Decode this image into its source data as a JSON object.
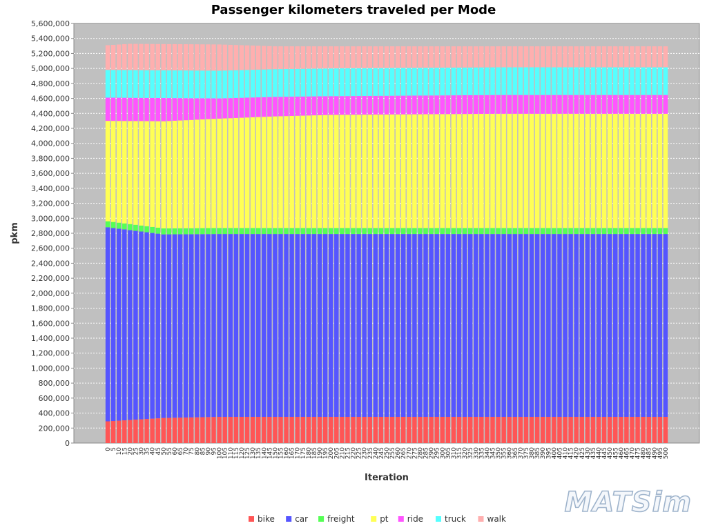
{
  "chart_data": {
    "type": "bar",
    "stacked": true,
    "title": "Passenger kilometers traveled per Mode",
    "xlabel": "Iteration",
    "ylabel": "pkm",
    "ylim": [
      0,
      5600000
    ],
    "y_ticks": [
      "0",
      "200,000",
      "400,000",
      "600,000",
      "800,000",
      "1,000,000",
      "1,200,000",
      "1,400,000",
      "1,600,000",
      "1,800,000",
      "2,000,000",
      "2,200,000",
      "2,400,000",
      "2,600,000",
      "2,800,000",
      "3,000,000",
      "3,200,000",
      "3,400,000",
      "3,600,000",
      "3,800,000",
      "4,000,000",
      "4,200,000",
      "4,400,000",
      "4,600,000",
      "4,800,000",
      "5,000,000",
      "5,200,000",
      "5,400,000",
      "5,600,000"
    ],
    "y_tick_values": [
      0,
      200000,
      400000,
      600000,
      800000,
      1000000,
      1200000,
      1400000,
      1600000,
      1800000,
      2000000,
      2200000,
      2400000,
      2600000,
      2800000,
      3000000,
      3200000,
      3400000,
      3600000,
      3800000,
      4000000,
      4200000,
      4400000,
      4600000,
      4800000,
      5000000,
      5200000,
      5400000,
      5600000
    ],
    "grid": true,
    "legend_position": "bottom",
    "background": "#c0c0c0",
    "x": [
      0,
      5,
      10,
      15,
      20,
      25,
      30,
      35,
      40,
      45,
      50,
      55,
      60,
      65,
      70,
      75,
      80,
      85,
      90,
      95,
      100,
      105,
      110,
      115,
      120,
      125,
      130,
      135,
      140,
      145,
      150,
      155,
      160,
      165,
      170,
      175,
      180,
      185,
      190,
      195,
      200,
      205,
      210,
      215,
      220,
      225,
      230,
      235,
      240,
      245,
      250,
      255,
      260,
      265,
      270,
      275,
      280,
      285,
      290,
      295,
      300,
      305,
      310,
      315,
      320,
      325,
      330,
      335,
      340,
      345,
      350,
      355,
      360,
      365,
      370,
      375,
      380,
      385,
      390,
      395,
      400,
      405,
      410,
      415,
      420,
      425,
      430,
      435,
      440,
      445,
      450,
      455,
      460,
      465,
      470,
      475,
      480,
      485,
      490,
      495,
      500
    ],
    "series": [
      {
        "name": "bike",
        "color": "#ff5555",
        "values": [
          290000,
          294500,
          299000,
          303500,
          308000,
          312500,
          317000,
          321500,
          326000,
          330500,
          335000,
          336500,
          338000,
          339500,
          341000,
          342500,
          344000,
          345500,
          347000,
          348500,
          350000,
          350000,
          350000,
          350000,
          350000,
          350000,
          350000,
          350000,
          350000,
          350000,
          350000,
          350000,
          350000,
          350000,
          350000,
          350000,
          350000,
          350000,
          350000,
          350000,
          350000,
          350000,
          350000,
          350000,
          350000,
          350000,
          350000,
          350000,
          350000,
          350000,
          350000,
          350000,
          350000,
          350000,
          350000,
          350000,
          350000,
          350000,
          350000,
          350000,
          350000,
          350000,
          350000,
          350000,
          350000,
          350000,
          350000,
          350000,
          350000,
          350000,
          350000,
          350000,
          350000,
          350000,
          350000,
          350000,
          350000,
          350000,
          350000,
          350000,
          350000,
          350000,
          350000,
          350000,
          350000,
          350000,
          350000,
          350000,
          350000,
          350000,
          350000,
          350000,
          350000,
          350000,
          350000,
          350000,
          350000,
          350000,
          350000,
          350000,
          350000
        ]
      },
      {
        "name": "car",
        "color": "#5555ff",
        "values": [
          2590000,
          2576000,
          2562000,
          2548000,
          2534000,
          2520000,
          2506000,
          2492000,
          2478000,
          2464000,
          2450000,
          2449000,
          2448000,
          2447000,
          2446000,
          2445000,
          2444000,
          2443000,
          2442000,
          2441000,
          2440000,
          2440000,
          2440000,
          2440000,
          2440000,
          2440000,
          2440000,
          2440000,
          2440000,
          2440000,
          2440000,
          2440000,
          2440000,
          2440000,
          2440000,
          2440000,
          2440000,
          2440000,
          2440000,
          2440000,
          2440000,
          2440000,
          2440000,
          2440000,
          2440000,
          2440000,
          2440000,
          2440000,
          2440000,
          2440000,
          2440000,
          2440000,
          2440000,
          2440000,
          2440000,
          2440000,
          2440000,
          2440000,
          2440000,
          2440000,
          2440000,
          2440000,
          2440000,
          2440000,
          2440000,
          2440000,
          2440000,
          2440000,
          2440000,
          2440000,
          2440000,
          2440000,
          2440000,
          2440000,
          2440000,
          2440000,
          2440000,
          2440000,
          2440000,
          2440000,
          2440000,
          2440000,
          2440000,
          2440000,
          2440000,
          2440000,
          2440000,
          2440000,
          2440000,
          2440000,
          2440000,
          2440000,
          2440000,
          2440000,
          2440000,
          2440000,
          2440000,
          2440000,
          2440000,
          2440000,
          2440000
        ]
      },
      {
        "name": "freight",
        "color": "#55ff55",
        "values": [
          80000,
          80000,
          80000,
          80000,
          80000,
          80000,
          80000,
          80000,
          80000,
          80000,
          80000,
          80000,
          80000,
          80000,
          80000,
          80000,
          80000,
          80000,
          80000,
          80000,
          80000,
          80000,
          80000,
          80000,
          80000,
          80000,
          80000,
          80000,
          80000,
          80000,
          80000,
          80000,
          80000,
          80000,
          80000,
          80000,
          80000,
          80000,
          80000,
          80000,
          80000,
          80000,
          80000,
          80000,
          80000,
          80000,
          80000,
          80000,
          80000,
          80000,
          80000,
          80000,
          80000,
          80000,
          80000,
          80000,
          80000,
          80000,
          80000,
          80000,
          80000,
          80000,
          80000,
          80000,
          80000,
          80000,
          80000,
          80000,
          80000,
          80000,
          80000,
          80000,
          80000,
          80000,
          80000,
          80000,
          80000,
          80000,
          80000,
          80000,
          80000,
          80000,
          80000,
          80000,
          80000,
          80000,
          80000,
          80000,
          80000,
          80000,
          80000,
          80000,
          80000,
          80000,
          80000,
          80000,
          80000,
          80000,
          80000,
          80000,
          80000
        ]
      },
      {
        "name": "pt",
        "color": "#ffff55",
        "values": [
          1340000,
          1349000,
          1358000,
          1367000,
          1376000,
          1385000,
          1394000,
          1403000,
          1412000,
          1421000,
          1430000,
          1433000,
          1436000,
          1439000,
          1442000,
          1445000,
          1448000,
          1451000,
          1454000,
          1457000,
          1460000,
          1463000,
          1466000,
          1469000,
          1472000,
          1475000,
          1478000,
          1481000,
          1484000,
          1487000,
          1490000,
          1492000,
          1494000,
          1496000,
          1498000,
          1500000,
          1502000,
          1504000,
          1506000,
          1508000,
          1510000,
          1510500,
          1511000,
          1511500,
          1512000,
          1512500,
          1513000,
          1513500,
          1514000,
          1514500,
          1515000,
          1515500,
          1516000,
          1516500,
          1517000,
          1517500,
          1518000,
          1518500,
          1519000,
          1519500,
          1520000,
          1520500,
          1521000,
          1521500,
          1522000,
          1522500,
          1523000,
          1523500,
          1524000,
          1524500,
          1525000,
          1525000,
          1525000,
          1525000,
          1525000,
          1525000,
          1525000,
          1525000,
          1525000,
          1525000,
          1525000,
          1525000,
          1525000,
          1525000,
          1525000,
          1525000,
          1525000,
          1525000,
          1525000,
          1525000,
          1525000,
          1525000,
          1525000,
          1525000,
          1525000,
          1525000,
          1525000,
          1525000,
          1525000,
          1525000,
          1525000
        ]
      },
      {
        "name": "ride",
        "color": "#ff55ff",
        "values": [
          310000,
          310000,
          310000,
          310000,
          310000,
          310000,
          310000,
          310000,
          310000,
          310000,
          310000,
          306000,
          302000,
          298000,
          294000,
          290000,
          286000,
          282000,
          278000,
          274000,
          270000,
          269000,
          268000,
          267000,
          266000,
          265000,
          264000,
          263000,
          262000,
          261000,
          260000,
          259000,
          258000,
          257000,
          256000,
          255000,
          254000,
          253000,
          252000,
          251000,
          250000,
          250000,
          250000,
          250000,
          250000,
          250000,
          250000,
          250000,
          250000,
          250000,
          250000,
          250000,
          250000,
          250000,
          250000,
          250000,
          250000,
          250000,
          250000,
          250000,
          250000,
          250000,
          250000,
          250000,
          250000,
          250000,
          250000,
          250000,
          250000,
          250000,
          250000,
          250000,
          250000,
          250000,
          250000,
          250000,
          250000,
          250000,
          250000,
          250000,
          250000,
          250000,
          250000,
          250000,
          250000,
          250000,
          250000,
          250000,
          250000,
          250000,
          250000,
          250000,
          250000,
          250000,
          250000,
          250000,
          250000,
          250000,
          250000,
          250000,
          250000
        ]
      },
      {
        "name": "truck",
        "color": "#55ffff",
        "values": [
          370000,
          370000,
          370000,
          370000,
          370000,
          370000,
          370000,
          370000,
          370000,
          370000,
          370000,
          370000,
          370000,
          370000,
          370000,
          370000,
          370000,
          370000,
          370000,
          370000,
          370000,
          370000,
          370000,
          370000,
          370000,
          370000,
          370000,
          370000,
          370000,
          370000,
          370000,
          370000,
          370000,
          370000,
          370000,
          370000,
          370000,
          370000,
          370000,
          370000,
          370000,
          370000,
          370000,
          370000,
          370000,
          370000,
          370000,
          370000,
          370000,
          370000,
          370000,
          370000,
          370000,
          370000,
          370000,
          370000,
          370000,
          370000,
          370000,
          370000,
          370000,
          370000,
          370000,
          370000,
          370000,
          370000,
          370000,
          370000,
          370000,
          370000,
          370000,
          370000,
          370000,
          370000,
          370000,
          370000,
          370000,
          370000,
          370000,
          370000,
          370000,
          370000,
          370000,
          370000,
          370000,
          370000,
          370000,
          370000,
          370000,
          370000,
          370000,
          370000,
          370000,
          370000,
          370000,
          370000,
          370000,
          370000,
          370000,
          370000,
          370000
        ]
      },
      {
        "name": "walk",
        "color": "#ffafaf",
        "values": [
          330000,
          335000,
          340000,
          345000,
          350000,
          350000,
          350000,
          350000,
          350000,
          350000,
          350000,
          350000,
          350000,
          350000,
          350000,
          350000,
          350000,
          350000,
          350000,
          350000,
          350000,
          345500,
          341000,
          336500,
          332000,
          327500,
          323000,
          318500,
          314000,
          309500,
          305000,
          304000,
          303000,
          302000,
          301000,
          300000,
          299000,
          298000,
          297000,
          296000,
          295000,
          294500,
          294000,
          293500,
          293000,
          292500,
          292000,
          291500,
          291000,
          290500,
          290000,
          289500,
          289000,
          288500,
          288000,
          287500,
          287000,
          286500,
          286000,
          285500,
          285000,
          284500,
          284000,
          283500,
          283000,
          282500,
          282000,
          281500,
          281000,
          280500,
          280000,
          280000,
          280000,
          280000,
          280000,
          280000,
          280000,
          280000,
          280000,
          280000,
          280000,
          280000,
          280000,
          280000,
          280000,
          280000,
          280000,
          280000,
          280000,
          280000,
          280000,
          280000,
          280000,
          280000,
          280000,
          280000,
          280000,
          280000,
          280000,
          280000,
          280000
        ]
      }
    ]
  },
  "logo": {
    "text": "MATSim"
  }
}
